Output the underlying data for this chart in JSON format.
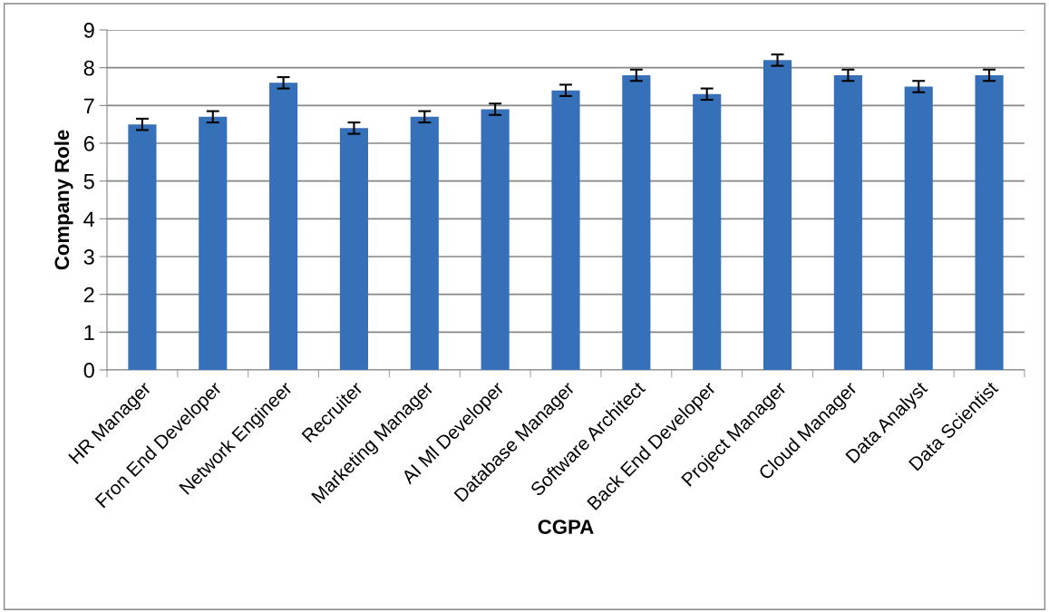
{
  "chart_data": {
    "type": "bar",
    "xlabel": "CGPA",
    "ylabel": "Company Role",
    "categories": [
      "HR Manager",
      "Fron End Developer",
      "Network Engineer",
      "Recruiter",
      "Marketing Manager",
      "AI Ml Developer",
      "Database Manager",
      "Software Architect",
      "Back End Developer",
      "Project Manager",
      "Cloud Manager",
      "Data Analyst",
      "Data Scientist"
    ],
    "values": [
      6.5,
      6.7,
      7.6,
      6.4,
      6.7,
      6.9,
      7.4,
      7.8,
      7.3,
      8.2,
      7.8,
      7.5,
      7.8
    ],
    "errors": [
      0.15,
      0.15,
      0.15,
      0.15,
      0.15,
      0.15,
      0.15,
      0.15,
      0.15,
      0.15,
      0.15,
      0.15,
      0.15
    ],
    "color": "#3670b8",
    "ylim": [
      0,
      9
    ],
    "yticks": [
      0,
      1,
      2,
      3,
      4,
      5,
      6,
      7,
      8,
      9
    ],
    "grid": "y",
    "legend": false
  }
}
